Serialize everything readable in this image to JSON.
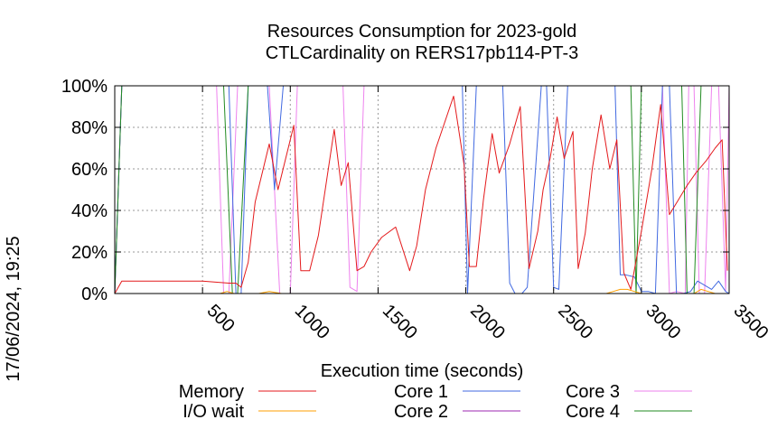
{
  "chart_data": {
    "type": "line",
    "title": "Resources Consumption for 2023-gold",
    "subtitle": "CTLCardinality on RERS17pb114-PT-3",
    "xlabel": "Execution time (seconds)",
    "ylabel": "",
    "timestamp": "17/06/2024, 19:25",
    "xlim": [
      0,
      3500
    ],
    "ylim": [
      0,
      100
    ],
    "x_ticks": [
      500,
      1000,
      1500,
      2000,
      2500,
      3000,
      3500
    ],
    "y_ticks": [
      0,
      20,
      40,
      60,
      80,
      100
    ],
    "y_tick_labels": [
      "0%",
      "20%",
      "40%",
      "60%",
      "80%",
      "100%"
    ],
    "grid": true,
    "legend_position": "bottom",
    "series": [
      {
        "name": "Memory",
        "color": "#e41a1c",
        "x": [
          0,
          40,
          100,
          300,
          500,
          650,
          690,
          720,
          760,
          800,
          880,
          930,
          1020,
          1060,
          1110,
          1160,
          1250,
          1290,
          1330,
          1380,
          1420,
          1460,
          1520,
          1600,
          1680,
          1720,
          1770,
          1830,
          1930,
          1990,
          2020,
          2060,
          2100,
          2150,
          2190,
          2250,
          2310,
          2360,
          2410,
          2440,
          2480,
          2520,
          2560,
          2610,
          2640,
          2680,
          2720,
          2770,
          2820,
          2860,
          2900,
          2940,
          3000,
          3060,
          3110,
          3160,
          3210,
          3260,
          3310,
          3370,
          3420,
          3460,
          3490
        ],
        "values": [
          0,
          6,
          6,
          6,
          6,
          5,
          5,
          3,
          15,
          44,
          72,
          50,
          81,
          11,
          11,
          28,
          79,
          52,
          63,
          11,
          13,
          20,
          27,
          32,
          11,
          23,
          50,
          70,
          95,
          62,
          13,
          13,
          45,
          77,
          58,
          72,
          90,
          12,
          30,
          50,
          65,
          85,
          65,
          78,
          12,
          29,
          60,
          86,
          60,
          74,
          10,
          2,
          30,
          60,
          91,
          38,
          45,
          52,
          58,
          64,
          70,
          74,
          11
        ]
      },
      {
        "name": "I/O wait",
        "color": "#ff9f00",
        "x": [
          0,
          600,
          640,
          680,
          820,
          880,
          950,
          1200,
          2800,
          2840,
          2880,
          2920,
          2960,
          3000,
          3300,
          3340,
          3380,
          3420,
          3500
        ],
        "values": [
          0,
          0,
          1,
          0,
          0,
          1,
          0,
          0,
          0,
          1,
          2,
          2,
          1,
          0,
          0,
          2,
          1,
          0,
          0
        ]
      },
      {
        "name": "Core 1",
        "color": "#4169e1",
        "x": [
          0,
          40,
          600,
          650,
          690,
          720,
          760,
          790,
          830,
          870,
          910,
          960,
          1000,
          1900,
          1930,
          1980,
          2010,
          2060,
          2100,
          2180,
          2210,
          2250,
          2280,
          2320,
          2350,
          2430,
          2460,
          2500,
          2530,
          2580,
          2610,
          2820,
          2850,
          2880,
          2910,
          2960,
          3000,
          3040,
          3080,
          3120,
          3160,
          3200,
          3240,
          3280,
          3320,
          3360,
          3400,
          3440,
          3480,
          3500
        ],
        "values": [
          0,
          100,
          100,
          100,
          0,
          0,
          100,
          100,
          100,
          100,
          50,
          100,
          100,
          100,
          100,
          100,
          0,
          100,
          100,
          100,
          100,
          5,
          0,
          0,
          3,
          100,
          100,
          3,
          2,
          100,
          100,
          100,
          100,
          9,
          9,
          8,
          1,
          1,
          0,
          100,
          100,
          0,
          0,
          1,
          6,
          4,
          2,
          6,
          1,
          0
        ]
      },
      {
        "name": "Core 2",
        "color": "#9c27b0",
        "x": [
          0,
          40,
          3000,
          3050,
          3100,
          3150,
          3200,
          3250,
          3300,
          3400,
          3470,
          3500
        ],
        "values": [
          0,
          100,
          100,
          100,
          100,
          100,
          100,
          100,
          100,
          100,
          100,
          100
        ]
      },
      {
        "name": "Core 3",
        "color": "#ee82ee",
        "x": [
          0,
          40,
          580,
          620,
          650,
          700,
          760,
          840,
          880,
          940,
          1000,
          1040,
          1300,
          1340,
          1380,
          1420,
          1440,
          3000,
          3060,
          3120,
          3160,
          3200,
          3250,
          3270,
          3300,
          3330,
          3360,
          3400,
          3440,
          3480,
          3500
        ],
        "values": [
          0,
          100,
          100,
          0,
          0,
          100,
          100,
          100,
          100,
          0,
          0,
          100,
          100,
          3,
          1,
          100,
          100,
          100,
          100,
          100,
          0,
          1,
          0,
          100,
          100,
          0,
          0,
          100,
          100,
          1,
          100
        ]
      },
      {
        "name": "Core 4",
        "color": "#228b22",
        "x": [
          0,
          40,
          620,
          670,
          700,
          760,
          2940,
          2970,
          3000,
          3200,
          3230,
          3260,
          3300,
          3340,
          3380,
          3500
        ],
        "values": [
          0,
          100,
          100,
          0,
          0,
          100,
          100,
          0,
          100,
          100,
          100,
          0,
          0,
          100,
          100,
          100
        ]
      }
    ]
  }
}
